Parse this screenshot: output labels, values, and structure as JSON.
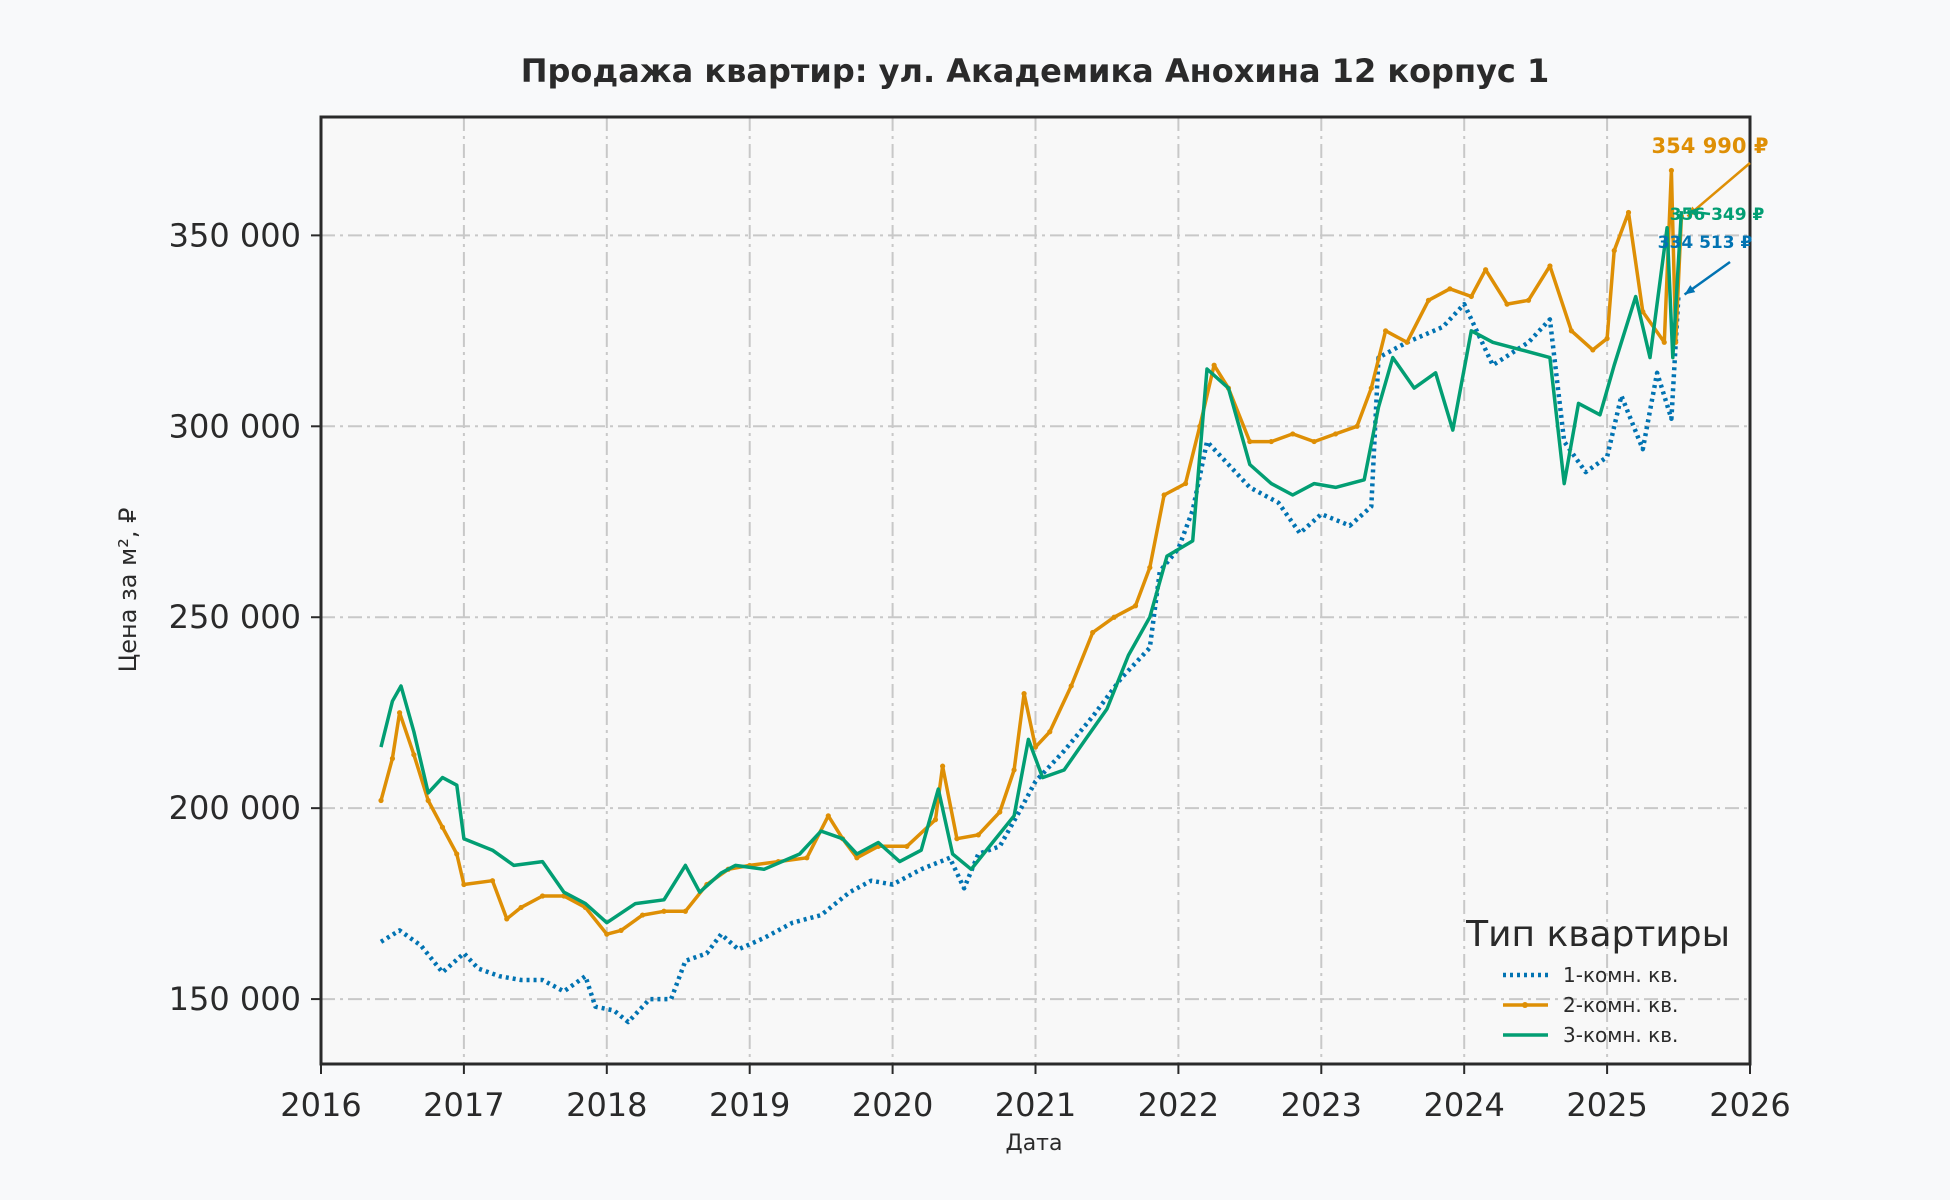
{
  "chart_data": {
    "type": "line",
    "title": "Продажа квартир: ул. Академика Анохина 12 корпус 1",
    "xlabel": "Дата",
    "ylabel": "Цена за м², ₽",
    "xlim": [
      2016.0,
      2026.0
    ],
    "ylim": [
      133000,
      381000
    ],
    "x_ticks": [
      "2016",
      "2017",
      "2018",
      "2019",
      "2020",
      "2021",
      "2022",
      "2023",
      "2024",
      "2025",
      "2026"
    ],
    "y_ticks": [
      150000,
      200000,
      250000,
      300000,
      350000
    ],
    "y_tick_labels": [
      "150 000",
      "200 000",
      "250 000",
      "300 000",
      "350 000"
    ],
    "grid": true,
    "legend": {
      "title": "Тип квартиры",
      "position": "lower-right"
    },
    "series": [
      {
        "name": "1-комн. кв.",
        "color": "#0173b2",
        "style": "dotted",
        "end_label": "334 513 ₽",
        "points": [
          [
            2016.42,
            165000
          ],
          [
            2016.55,
            168000
          ],
          [
            2016.7,
            164000
          ],
          [
            2016.85,
            157000
          ],
          [
            2017.0,
            162000
          ],
          [
            2017.1,
            158000
          ],
          [
            2017.25,
            156000
          ],
          [
            2017.4,
            155000
          ],
          [
            2017.55,
            155000
          ],
          [
            2017.7,
            152000
          ],
          [
            2017.85,
            156000
          ],
          [
            2017.92,
            148000
          ],
          [
            2018.05,
            147000
          ],
          [
            2018.15,
            144000
          ],
          [
            2018.3,
            150000
          ],
          [
            2018.45,
            150000
          ],
          [
            2018.55,
            160000
          ],
          [
            2018.7,
            162000
          ],
          [
            2018.8,
            167000
          ],
          [
            2018.92,
            163000
          ],
          [
            2019.1,
            166000
          ],
          [
            2019.3,
            170000
          ],
          [
            2019.5,
            172000
          ],
          [
            2019.7,
            178000
          ],
          [
            2019.85,
            181000
          ],
          [
            2020.0,
            180000
          ],
          [
            2020.2,
            184000
          ],
          [
            2020.4,
            187000
          ],
          [
            2020.5,
            179000
          ],
          [
            2020.6,
            188000
          ],
          [
            2020.75,
            190000
          ],
          [
            2020.9,
            200000
          ],
          [
            2021.0,
            207000
          ],
          [
            2021.2,
            215000
          ],
          [
            2021.4,
            224000
          ],
          [
            2021.6,
            234000
          ],
          [
            2021.8,
            242000
          ],
          [
            2021.87,
            262000
          ],
          [
            2022.0,
            268000
          ],
          [
            2022.1,
            278000
          ],
          [
            2022.2,
            296000
          ],
          [
            2022.35,
            290000
          ],
          [
            2022.5,
            284000
          ],
          [
            2022.7,
            280000
          ],
          [
            2022.85,
            272000
          ],
          [
            2023.0,
            277000
          ],
          [
            2023.2,
            274000
          ],
          [
            2023.35,
            279000
          ],
          [
            2023.4,
            318000
          ],
          [
            2023.6,
            322000
          ],
          [
            2023.85,
            326000
          ],
          [
            2024.0,
            332000
          ],
          [
            2024.2,
            316000
          ],
          [
            2024.45,
            322000
          ],
          [
            2024.6,
            328000
          ],
          [
            2024.7,
            296000
          ],
          [
            2024.85,
            288000
          ],
          [
            2025.0,
            292000
          ],
          [
            2025.1,
            308000
          ],
          [
            2025.25,
            294000
          ],
          [
            2025.35,
            314000
          ],
          [
            2025.45,
            302000
          ],
          [
            2025.5,
            334513
          ]
        ]
      },
      {
        "name": "2-комн. кв.",
        "color": "#de8f05",
        "style": "solid-marker",
        "end_label": "354 990 ₽",
        "points": [
          [
            2016.42,
            202000
          ],
          [
            2016.5,
            213000
          ],
          [
            2016.55,
            225000
          ],
          [
            2016.65,
            214000
          ],
          [
            2016.75,
            202000
          ],
          [
            2016.85,
            195000
          ],
          [
            2016.95,
            188000
          ],
          [
            2017.0,
            180000
          ],
          [
            2017.2,
            181000
          ],
          [
            2017.3,
            171000
          ],
          [
            2017.4,
            174000
          ],
          [
            2017.55,
            177000
          ],
          [
            2017.7,
            177000
          ],
          [
            2017.85,
            174000
          ],
          [
            2018.0,
            167000
          ],
          [
            2018.1,
            168000
          ],
          [
            2018.25,
            172000
          ],
          [
            2018.4,
            173000
          ],
          [
            2018.55,
            173000
          ],
          [
            2018.7,
            180000
          ],
          [
            2018.85,
            184000
          ],
          [
            2019.0,
            185000
          ],
          [
            2019.2,
            186000
          ],
          [
            2019.4,
            187000
          ],
          [
            2019.55,
            198000
          ],
          [
            2019.65,
            192000
          ],
          [
            2019.75,
            187000
          ],
          [
            2019.9,
            190000
          ],
          [
            2020.1,
            190000
          ],
          [
            2020.3,
            197000
          ],
          [
            2020.35,
            211000
          ],
          [
            2020.45,
            192000
          ],
          [
            2020.6,
            193000
          ],
          [
            2020.75,
            199000
          ],
          [
            2020.85,
            210000
          ],
          [
            2020.92,
            230000
          ],
          [
            2021.0,
            216000
          ],
          [
            2021.1,
            220000
          ],
          [
            2021.25,
            232000
          ],
          [
            2021.4,
            246000
          ],
          [
            2021.55,
            250000
          ],
          [
            2021.7,
            253000
          ],
          [
            2021.8,
            263000
          ],
          [
            2021.9,
            282000
          ],
          [
            2022.05,
            285000
          ],
          [
            2022.15,
            300000
          ],
          [
            2022.25,
            316000
          ],
          [
            2022.35,
            310000
          ],
          [
            2022.5,
            296000
          ],
          [
            2022.65,
            296000
          ],
          [
            2022.8,
            298000
          ],
          [
            2022.95,
            296000
          ],
          [
            2023.1,
            298000
          ],
          [
            2023.25,
            300000
          ],
          [
            2023.35,
            310000
          ],
          [
            2023.45,
            325000
          ],
          [
            2023.6,
            322000
          ],
          [
            2023.75,
            333000
          ],
          [
            2023.9,
            336000
          ],
          [
            2024.05,
            334000
          ],
          [
            2024.15,
            341000
          ],
          [
            2024.3,
            332000
          ],
          [
            2024.45,
            333000
          ],
          [
            2024.6,
            342000
          ],
          [
            2024.75,
            325000
          ],
          [
            2024.9,
            320000
          ],
          [
            2025.0,
            323000
          ],
          [
            2025.05,
            346000
          ],
          [
            2025.15,
            356000
          ],
          [
            2025.25,
            330000
          ],
          [
            2025.4,
            322000
          ],
          [
            2025.45,
            367000
          ],
          [
            2025.48,
            322000
          ],
          [
            2025.52,
            354990
          ]
        ]
      },
      {
        "name": "3-комн. кв.",
        "color": "#029e73",
        "style": "solid",
        "end_label": "356 349 ₽",
        "points": [
          [
            2016.42,
            216000
          ],
          [
            2016.5,
            228000
          ],
          [
            2016.56,
            232000
          ],
          [
            2016.65,
            220000
          ],
          [
            2016.75,
            204000
          ],
          [
            2016.85,
            208000
          ],
          [
            2016.95,
            206000
          ],
          [
            2017.0,
            192000
          ],
          [
            2017.2,
            189000
          ],
          [
            2017.35,
            185000
          ],
          [
            2017.55,
            186000
          ],
          [
            2017.7,
            178000
          ],
          [
            2017.85,
            175000
          ],
          [
            2018.0,
            170000
          ],
          [
            2018.2,
            175000
          ],
          [
            2018.4,
            176000
          ],
          [
            2018.55,
            185000
          ],
          [
            2018.65,
            178000
          ],
          [
            2018.8,
            183000
          ],
          [
            2018.9,
            185000
          ],
          [
            2019.1,
            184000
          ],
          [
            2019.35,
            188000
          ],
          [
            2019.5,
            194000
          ],
          [
            2019.65,
            192000
          ],
          [
            2019.75,
            188000
          ],
          [
            2019.9,
            191000
          ],
          [
            2020.05,
            186000
          ],
          [
            2020.2,
            189000
          ],
          [
            2020.32,
            205000
          ],
          [
            2020.42,
            188000
          ],
          [
            2020.55,
            184000
          ],
          [
            2020.7,
            191000
          ],
          [
            2020.85,
            198000
          ],
          [
            2020.95,
            218000
          ],
          [
            2021.05,
            208000
          ],
          [
            2021.2,
            210000
          ],
          [
            2021.35,
            218000
          ],
          [
            2021.5,
            226000
          ],
          [
            2021.65,
            240000
          ],
          [
            2021.8,
            250000
          ],
          [
            2021.92,
            266000
          ],
          [
            2022.1,
            270000
          ],
          [
            2022.2,
            315000
          ],
          [
            2022.35,
            310000
          ],
          [
            2022.5,
            290000
          ],
          [
            2022.65,
            285000
          ],
          [
            2022.8,
            282000
          ],
          [
            2022.95,
            285000
          ],
          [
            2023.1,
            284000
          ],
          [
            2023.3,
            286000
          ],
          [
            2023.4,
            305000
          ],
          [
            2023.5,
            318000
          ],
          [
            2023.65,
            310000
          ],
          [
            2023.8,
            314000
          ],
          [
            2023.92,
            299000
          ],
          [
            2024.05,
            325000
          ],
          [
            2024.2,
            322000
          ],
          [
            2024.4,
            320000
          ],
          [
            2024.6,
            318000
          ],
          [
            2024.7,
            285000
          ],
          [
            2024.8,
            306000
          ],
          [
            2024.95,
            303000
          ],
          [
            2025.05,
            316000
          ],
          [
            2025.2,
            334000
          ],
          [
            2025.3,
            318000
          ],
          [
            2025.42,
            352000
          ],
          [
            2025.46,
            318000
          ],
          [
            2025.52,
            356349
          ]
        ]
      }
    ]
  }
}
